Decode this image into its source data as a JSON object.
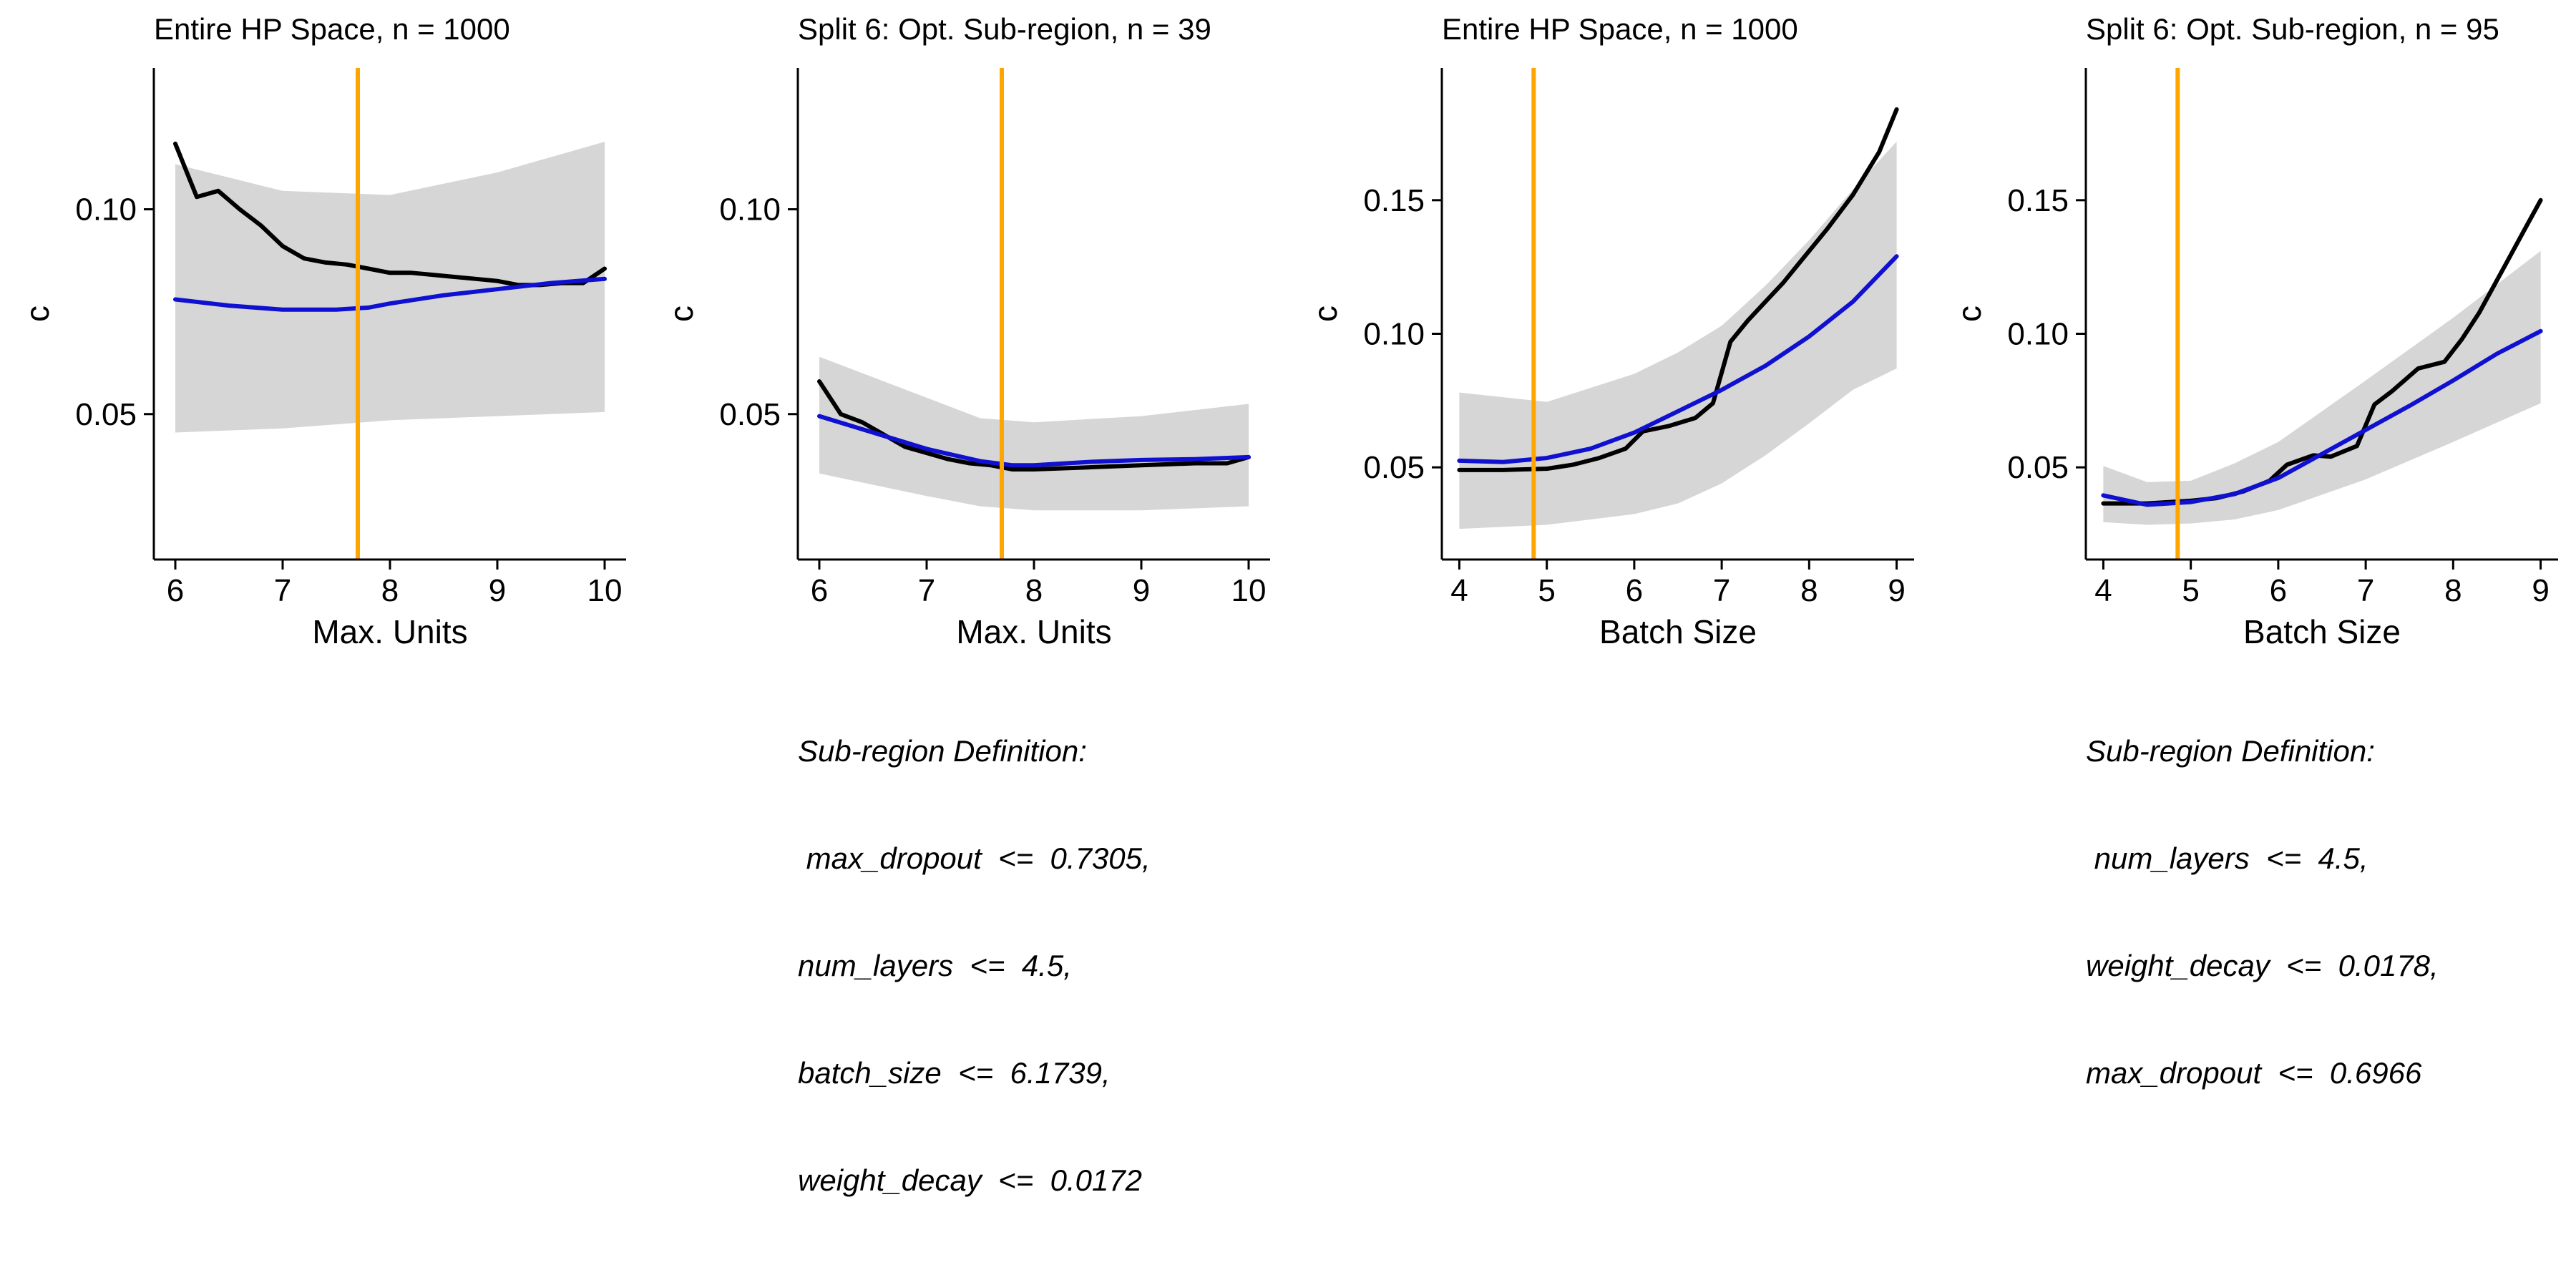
{
  "colors": {
    "band": "#d6d6d6",
    "observed": "#000000",
    "smooth": "#1010d0",
    "marker": "#ffa500",
    "axis": "#000000"
  },
  "chart_data": [
    {
      "type": "line",
      "title": "Entire HP Space, n = 1000",
      "xlabel": "Max. Units",
      "ylabel": "c",
      "xlim": [
        5.8,
        10.2
      ],
      "ylim": [
        0.0145,
        0.1345
      ],
      "xticks": [
        6,
        7,
        8,
        9,
        10
      ],
      "yticks": [
        0.05,
        0.1
      ],
      "ytick_labels": [
        "0.05",
        "0.10"
      ],
      "vline": 7.7,
      "series": [
        {
          "name": "observed",
          "x": [
            6,
            6.2,
            6.4,
            6.6,
            6.8,
            7.0,
            7.2,
            7.4,
            7.6,
            7.8,
            8.0,
            8.2,
            8.4,
            8.6,
            8.8,
            9.0,
            9.2,
            9.4,
            9.6,
            9.8,
            10.0
          ],
          "y": [
            0.116,
            0.103,
            0.1045,
            0.1,
            0.096,
            0.091,
            0.088,
            0.087,
            0.0865,
            0.0855,
            0.0845,
            0.0845,
            0.084,
            0.0835,
            0.083,
            0.0825,
            0.0815,
            0.0815,
            0.082,
            0.082,
            0.0855
          ]
        },
        {
          "name": "smooth",
          "x": [
            6,
            6.5,
            7.0,
            7.5,
            7.8,
            8.0,
            8.5,
            9.0,
            9.5,
            10.0
          ],
          "y": [
            0.078,
            0.0765,
            0.0755,
            0.0755,
            0.076,
            0.077,
            0.079,
            0.0805,
            0.082,
            0.083
          ]
        }
      ],
      "band": {
        "x": [
          6,
          7,
          8,
          9,
          10
        ],
        "lower": [
          0.0455,
          0.0465,
          0.0485,
          0.0495,
          0.0505
        ],
        "upper": [
          0.111,
          0.1045,
          0.1035,
          0.109,
          0.1165
        ]
      }
    },
    {
      "type": "line",
      "title": "Split 6: Opt. Sub-region, n = 39",
      "xlabel": "Max. Units",
      "ylabel": "c",
      "xlim": [
        5.8,
        10.2
      ],
      "ylim": [
        0.0145,
        0.1345
      ],
      "xticks": [
        6,
        7,
        8,
        9,
        10
      ],
      "yticks": [
        0.05,
        0.1
      ],
      "ytick_labels": [
        "0.05",
        "0.10"
      ],
      "vline": 7.7,
      "series": [
        {
          "name": "observed",
          "x": [
            6,
            6.2,
            6.4,
            6.6,
            6.8,
            7.0,
            7.2,
            7.4,
            7.6,
            7.8,
            8.0,
            8.5,
            9.0,
            9.5,
            9.8,
            10.0
          ],
          "y": [
            0.058,
            0.05,
            0.048,
            0.045,
            0.042,
            0.0405,
            0.039,
            0.038,
            0.0375,
            0.0365,
            0.0365,
            0.037,
            0.0375,
            0.038,
            0.038,
            0.0395
          ]
        },
        {
          "name": "smooth",
          "x": [
            6,
            6.5,
            7.0,
            7.5,
            7.8,
            8.0,
            8.5,
            9.0,
            9.5,
            10.0
          ],
          "y": [
            0.0495,
            0.0455,
            0.0415,
            0.0385,
            0.0375,
            0.0375,
            0.0383,
            0.0388,
            0.039,
            0.0395
          ]
        },
        {
          "name": "band_upper",
          "x": [
            6,
            7,
            7.5,
            8,
            9,
            10
          ],
          "y": [
            0.064,
            0.054,
            0.049,
            0.048,
            0.0495,
            0.0525
          ]
        }
      ],
      "band": {
        "x": [
          6,
          7,
          7.5,
          8,
          9,
          10
        ],
        "lower": [
          0.0355,
          0.03,
          0.0275,
          0.0265,
          0.0265,
          0.0275
        ],
        "upper": [
          0.064,
          0.054,
          0.049,
          0.048,
          0.0495,
          0.0525
        ]
      },
      "annotation": {
        "heading": "Sub-region Definition:",
        "lines": [
          " max_dropout  <=  0.7305,",
          "num_layers  <=  4.5,",
          "batch_size  <=  6.1739,",
          "weight_decay  <=  0.0172"
        ]
      }
    },
    {
      "type": "line",
      "title": "Entire HP Space, n = 1000",
      "xlabel": "Batch Size",
      "ylabel": "c",
      "xlim": [
        3.8,
        9.2
      ],
      "ylim": [
        0.0155,
        0.1995
      ],
      "xticks": [
        4,
        5,
        6,
        7,
        8,
        9
      ],
      "yticks": [
        0.05,
        0.1,
        0.15
      ],
      "ytick_labels": [
        "0.05",
        "0.10",
        "0.15"
      ],
      "vline": 4.85,
      "series": [
        {
          "name": "observed",
          "x": [
            4,
            4.5,
            5.0,
            5.3,
            5.6,
            5.9,
            6.1,
            6.4,
            6.7,
            6.9,
            7.1,
            7.3,
            7.5,
            7.7,
            7.9,
            8.2,
            8.5,
            8.8,
            9.0
          ],
          "y": [
            0.049,
            0.049,
            0.0495,
            0.051,
            0.0535,
            0.057,
            0.0635,
            0.0655,
            0.0685,
            0.074,
            0.097,
            0.105,
            0.112,
            0.119,
            0.127,
            0.139,
            0.152,
            0.168,
            0.184
          ]
        },
        {
          "name": "smooth",
          "x": [
            4,
            4.5,
            5.0,
            5.5,
            6.0,
            6.5,
            7.0,
            7.5,
            8.0,
            8.5,
            9.0
          ],
          "y": [
            0.0525,
            0.052,
            0.0535,
            0.057,
            0.063,
            0.071,
            0.079,
            0.088,
            0.099,
            0.112,
            0.129
          ]
        }
      ],
      "band": {
        "x": [
          4,
          5,
          6,
          6.5,
          7,
          7.5,
          8,
          8.5,
          9
        ],
        "lower": [
          0.027,
          0.0285,
          0.0325,
          0.0365,
          0.044,
          0.0545,
          0.0665,
          0.079,
          0.087
        ],
        "upper": [
          0.078,
          0.0745,
          0.085,
          0.093,
          0.103,
          0.118,
          0.135,
          0.154,
          0.172
        ]
      }
    },
    {
      "type": "line",
      "title": "Split 6: Opt. Sub-region, n = 95",
      "xlabel": "Batch Size",
      "ylabel": "c",
      "xlim": [
        3.8,
        9.2
      ],
      "ylim": [
        0.0155,
        0.1995
      ],
      "xticks": [
        4,
        5,
        6,
        7,
        8,
        9
      ],
      "yticks": [
        0.05,
        0.1,
        0.15
      ],
      "ytick_labels": [
        "0.05",
        "0.10",
        "0.15"
      ],
      "vline": 4.85,
      "series": [
        {
          "name": "observed",
          "x": [
            4,
            4.5,
            5.0,
            5.3,
            5.6,
            5.9,
            6.1,
            6.4,
            6.6,
            6.9,
            7.1,
            7.3,
            7.6,
            7.9,
            8.1,
            8.3,
            8.6,
            8.8,
            9.0
          ],
          "y": [
            0.0365,
            0.0365,
            0.0375,
            0.0385,
            0.041,
            0.045,
            0.051,
            0.0545,
            0.054,
            0.058,
            0.0735,
            0.0785,
            0.087,
            0.0895,
            0.098,
            0.108,
            0.126,
            0.138,
            0.15
          ]
        },
        {
          "name": "smooth",
          "x": [
            4,
            4.5,
            5.0,
            5.5,
            6.0,
            6.5,
            7.0,
            7.5,
            8.0,
            8.5,
            9.0
          ],
          "y": [
            0.0395,
            0.036,
            0.037,
            0.04,
            0.046,
            0.055,
            0.064,
            0.073,
            0.0825,
            0.0925,
            0.101
          ]
        }
      ],
      "band": {
        "x": [
          4,
          4.5,
          5,
          5.5,
          6,
          7,
          8,
          9
        ],
        "lower": [
          0.0295,
          0.0285,
          0.029,
          0.0305,
          0.034,
          0.0455,
          0.0595,
          0.074
        ],
        "upper": [
          0.0505,
          0.0445,
          0.045,
          0.0515,
          0.0595,
          0.0825,
          0.106,
          0.131
        ]
      },
      "annotation": {
        "heading": "Sub-region Definition:",
        "lines": [
          " num_layers  <=  4.5,",
          "weight_decay  <=  0.0178,",
          "max_dropout  <=  0.6966"
        ]
      }
    }
  ]
}
